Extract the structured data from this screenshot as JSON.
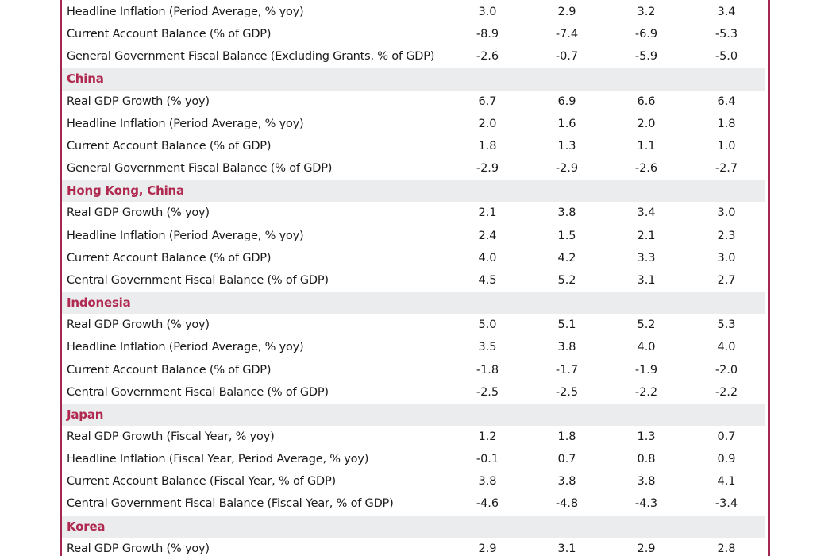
{
  "colors": {
    "accent": "#a3284f",
    "section_bg": "#ebecee"
  },
  "rows": [
    {
      "type": "data",
      "label": "Headline Inflation (Period Average, % yoy)",
      "values": [
        "3.0",
        "2.9",
        "3.2",
        "3.4"
      ]
    },
    {
      "type": "data",
      "label": "Current Account Balance (% of GDP)",
      "values": [
        "-8.9",
        "-7.4",
        "-6.9",
        "-5.3"
      ]
    },
    {
      "type": "data",
      "label": "General Government Fiscal Balance (Excluding Grants, % of GDP)",
      "values": [
        "-2.6",
        "-0.7",
        "-5.9",
        "-5.0"
      ]
    },
    {
      "type": "section",
      "label": "China"
    },
    {
      "type": "data",
      "label": "Real GDP Growth (% yoy)",
      "values": [
        "6.7",
        "6.9",
        "6.6",
        "6.4"
      ]
    },
    {
      "type": "data",
      "label": "Headline Inflation (Period Average, % yoy)",
      "values": [
        "2.0",
        "1.6",
        "2.0",
        "1.8"
      ]
    },
    {
      "type": "data",
      "label": "Current Account Balance (% of GDP)",
      "values": [
        "1.8",
        "1.3",
        "1.1",
        "1.0"
      ]
    },
    {
      "type": "data",
      "label": "General Government Fiscal Balance (% of GDP)",
      "values": [
        "-2.9",
        "-2.9",
        "-2.6",
        "-2.7"
      ]
    },
    {
      "type": "section",
      "label": "Hong Kong, China"
    },
    {
      "type": "data",
      "label": "Real GDP Growth (% yoy)",
      "values": [
        "2.1",
        "3.8",
        "3.4",
        "3.0"
      ]
    },
    {
      "type": "data",
      "label": "Headline Inflation (Period Average, % yoy)",
      "values": [
        "2.4",
        "1.5",
        "2.1",
        "2.3"
      ]
    },
    {
      "type": "data",
      "label": "Current Account Balance (% of GDP)",
      "values": [
        "4.0",
        "4.2",
        "3.3",
        "3.0"
      ]
    },
    {
      "type": "data",
      "label": "Central Government Fiscal Balance (% of GDP)",
      "values": [
        "4.5",
        "5.2",
        "3.1",
        "2.7"
      ]
    },
    {
      "type": "section",
      "label": "Indonesia"
    },
    {
      "type": "data",
      "label": "Real GDP Growth (% yoy)",
      "values": [
        "5.0",
        "5.1",
        "5.2",
        "5.3"
      ]
    },
    {
      "type": "data",
      "label": "Headline Inflation (Period Average, % yoy)",
      "values": [
        "3.5",
        "3.8",
        "4.0",
        "4.0"
      ]
    },
    {
      "type": "data",
      "label": "Current Account Balance (% of GDP)",
      "values": [
        "-1.8",
        "-1.7",
        "-1.9",
        "-2.0"
      ]
    },
    {
      "type": "data",
      "label": "Central Government Fiscal Balance (% of GDP)",
      "values": [
        "-2.5",
        "-2.5",
        "-2.2",
        "-2.2"
      ]
    },
    {
      "type": "section",
      "label": "Japan"
    },
    {
      "type": "data",
      "label": "Real GDP Growth (Fiscal Year, % yoy)",
      "values": [
        "1.2",
        "1.8",
        "1.3",
        "0.7"
      ]
    },
    {
      "type": "data",
      "label": "Headline Inflation (Fiscal Year, Period Average, % yoy)",
      "values": [
        "-0.1",
        "0.7",
        "0.8",
        "0.9"
      ]
    },
    {
      "type": "data",
      "label": "Current Account Balance (Fiscal Year, % of GDP)",
      "values": [
        "3.8",
        "3.8",
        "3.8",
        "4.1"
      ]
    },
    {
      "type": "data",
      "label": "Central Government Fiscal Balance (Fiscal Year, % of GDP)",
      "values": [
        "-4.6",
        "-4.8",
        "-4.3",
        "-3.4"
      ]
    },
    {
      "type": "section",
      "label": "Korea"
    },
    {
      "type": "data",
      "label": "Real GDP Growth (% yoy)",
      "values": [
        "2.9",
        "3.1",
        "2.9",
        "2.8"
      ]
    }
  ]
}
